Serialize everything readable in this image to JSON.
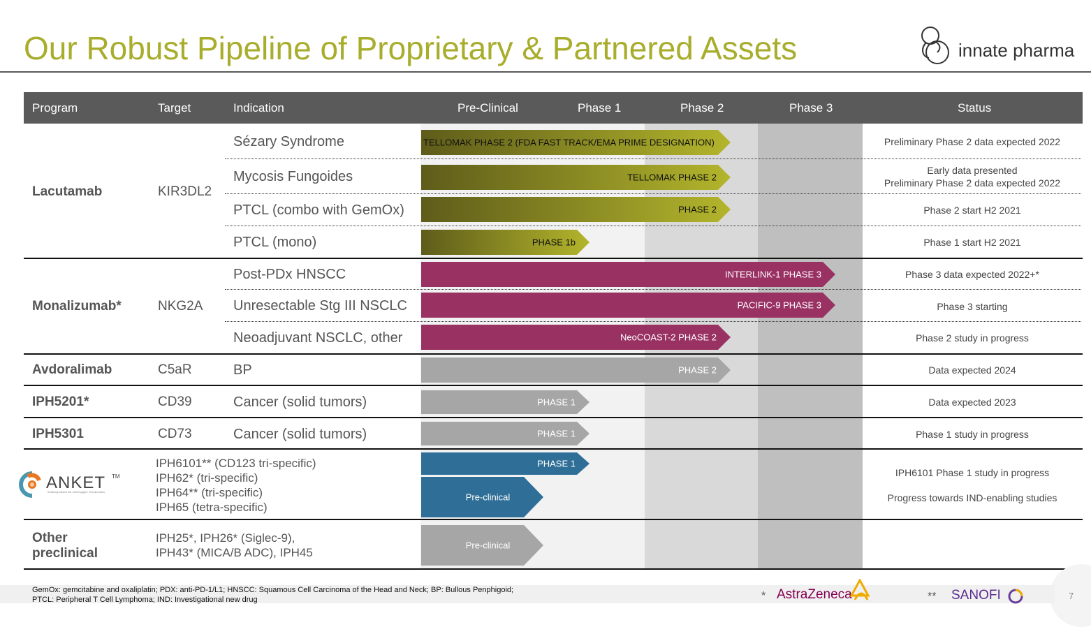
{
  "title": "Our Robust Pipeline of Proprietary & Partnered Assets",
  "logo": {
    "text": "innate pharma",
    "color": "#222222"
  },
  "header": {
    "program": "Program",
    "target": "Target",
    "indication": "Indication",
    "preclinical": "Pre-Clinical",
    "phase1": "Phase 1",
    "phase2": "Phase 2",
    "phase3": "Phase 3",
    "status": "Status"
  },
  "programs": [
    {
      "name": "Lacutamab",
      "target": "KIR3DL2"
    },
    {
      "name": "Monalizumab*",
      "target": "NKG2A"
    },
    {
      "name": "Avdoralimab",
      "target": "C5aR"
    },
    {
      "name": "IPH5201*",
      "target": "CD39"
    },
    {
      "name": "IPH5301",
      "target": "CD73"
    },
    {
      "name": "",
      "target": ""
    },
    {
      "name": "Other\npreclinical",
      "target": ""
    }
  ],
  "anket": {
    "text": "ANKET",
    "tm": "TM",
    "tagline": "Antibody-based NK cell Engager Therapeutics"
  },
  "rows": [
    {
      "indication": "Sézary Syndrome",
      "status": "Preliminary Phase 2 data expected 2022"
    },
    {
      "indication": "Mycosis Fungoides",
      "status": "Early data presented\nPreliminary Phase 2 data expected 2022"
    },
    {
      "indication": "PTCL (combo with GemOx)",
      "status": "Phase 2 start H2 2021"
    },
    {
      "indication": "PTCL (mono)",
      "status": "Phase 1 start H2 2021"
    },
    {
      "indication": "Post-PDx HNSCC",
      "status": "Phase 3 data expected 2022+*"
    },
    {
      "indication": "Unresectable Stg III NSCLC",
      "status": "Phase 3 starting"
    },
    {
      "indication": "Neoadjuvant NSCLC, other",
      "status": "Phase 2 study in progress"
    },
    {
      "indication": "BP",
      "status": "Data expected 2024"
    },
    {
      "indication": "Cancer (solid tumors)",
      "status": "Data expected 2023"
    },
    {
      "indication": "Cancer (solid tumors)",
      "status": "Phase 1 study in progress"
    }
  ],
  "anket_indication": [
    "IPH6101** (CD123 tri-specific)",
    "IPH62* (tri-specific)",
    "IPH64** (tri-specific)",
    "IPH65 (tetra-specific)"
  ],
  "anket_status": [
    "IPH6101 Phase 1 study in progress",
    "Progress towards IND-enabling studies"
  ],
  "other_indication": [
    "IPH25*, IPH26* (Siglec-9),",
    "IPH43* (MICA/B ADC), IPH45"
  ],
  "colors": {
    "olive_dark": "#5e5c1a",
    "olive_light": "#b3b52c",
    "magenta": "#993163",
    "gray_bar": "#a6a6a6",
    "blue": "#2f6f97",
    "header": "#5a5a5a",
    "title": "#a8ad2c"
  },
  "chart_data": {
    "type": "bar",
    "stages": [
      "Pre-Clinical",
      "Phase 1",
      "Phase 2",
      "Phase 3"
    ],
    "bars": [
      {
        "label": "TELLOMAK PHASE 2 (FDA FAST TRACK/EMA PRIME DESIGNATION)",
        "stage": "Phase 2",
        "color": "olive"
      },
      {
        "label": "TELLOMAK  PHASE 2",
        "stage": "Phase 2",
        "color": "olive"
      },
      {
        "label": "PHASE 2",
        "stage": "Phase 2",
        "color": "olive"
      },
      {
        "label": "PHASE 1b",
        "stage": "Phase 1",
        "color": "olive"
      },
      {
        "label": "INTERLINK-1  PHASE 3",
        "stage": "Phase 3",
        "color": "magenta"
      },
      {
        "label": "PACIFIC-9  PHASE 3",
        "stage": "Phase 3",
        "color": "magenta"
      },
      {
        "label": "NeoCOAST-2 PHASE 2",
        "stage": "Phase 2",
        "color": "magenta"
      },
      {
        "label": "PHASE 2",
        "stage": "Phase 2",
        "color": "gray"
      },
      {
        "label": "PHASE 1",
        "stage": "Phase 1",
        "color": "gray"
      },
      {
        "label": "PHASE 1",
        "stage": "Phase 1",
        "color": "gray"
      },
      {
        "label": "PHASE 1",
        "stage": "Phase 1",
        "color": "blue"
      },
      {
        "label": "Pre-clinical",
        "stage": "Pre-Clinical",
        "color": "blue"
      },
      {
        "label": "Pre-clinical",
        "stage": "Pre-Clinical",
        "color": "gray"
      }
    ]
  },
  "footnote": [
    "GemOx: gemcitabine and oxaliplatin; PDX: anti-PD-1/L1; HNSCC: Squamous Cell Carcinoma of the Head and Neck; BP: Bullous Penphigoid;",
    "PTCL: Peripheral T Cell Lymphoma; IND: Investigational new drug"
  ],
  "partners": {
    "az_mark": "*",
    "az_name": "AstraZeneca",
    "sanofi_mark": "**",
    "sanofi_name": "SANOFI"
  },
  "page_number": "7"
}
